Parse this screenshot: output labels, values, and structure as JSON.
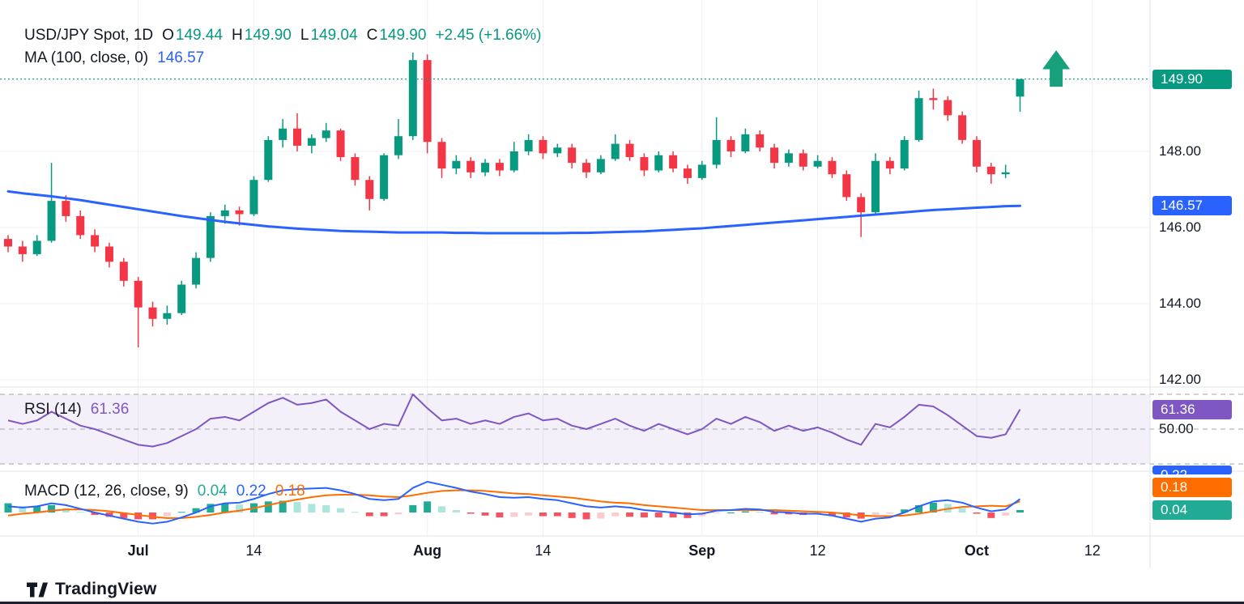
{
  "header": {
    "title": "USD/JPY Spot, 1D",
    "ohlc": {
      "o_label": "O",
      "o": "149.44",
      "h_label": "H",
      "h": "149.90",
      "l_label": "L",
      "l": "149.04",
      "c_label": "C",
      "c": "149.90",
      "change": "+2.45 (+1.66%)"
    },
    "ma": {
      "label": "MA (100, close, 0)",
      "value": "146.57"
    }
  },
  "rsi_legend": {
    "label": "RSI (14)",
    "value": "61.36"
  },
  "macd_legend": {
    "label": "MACD (12, 26, close, 9)",
    "hist": "0.04",
    "macd": "0.22",
    "signal": "0.18"
  },
  "axis": {
    "items": [
      {
        "text": "149.90",
        "pane": "main",
        "at": 149.9,
        "type": "badge",
        "bg": "#089981"
      },
      {
        "text": "148.00",
        "pane": "main",
        "at": 148.0,
        "type": "label"
      },
      {
        "text": "146.57",
        "pane": "main",
        "at": 146.57,
        "type": "badge",
        "bg": "#2962FF"
      },
      {
        "text": "146.00",
        "pane": "main",
        "at": 146.0,
        "type": "label"
      },
      {
        "text": "144.00",
        "pane": "main",
        "at": 144.0,
        "type": "label"
      },
      {
        "text": "142.00",
        "pane": "main",
        "at": 142.0,
        "type": "label"
      },
      {
        "text": "61.36",
        "pane": "rsi",
        "at": 61.36,
        "type": "badge",
        "bg": "#7E57C2"
      },
      {
        "text": "50.00",
        "pane": "rsi",
        "at": 50.0,
        "type": "label"
      },
      {
        "text": "0.22",
        "pane": "macd",
        "at": 0.22,
        "type": "badge",
        "bg": "#2962FF"
      },
      {
        "text": "0.18",
        "pane": "macd",
        "at": 0.18,
        "type": "badge",
        "bg": "#FF6D00"
      },
      {
        "text": "0.04",
        "pane": "macd",
        "at": 0.04,
        "type": "badge",
        "bg": "#22AB94"
      }
    ]
  },
  "footer": {
    "brand": "TradingView"
  },
  "colors": {
    "up": "#089981",
    "down": "#F23645",
    "ma": "#2962FF",
    "rsi": "#7E57C2",
    "band": "rgba(126,87,194,0.09)",
    "macd": "#2962FF",
    "signal": "#FF6D00",
    "hist_up": "#22AB94",
    "hist_up_fade": "#ACE5DC",
    "hist_down": "#F7525F",
    "hist_down_fade": "#FCCBCD",
    "grid": "#EDF0F6",
    "divider": "#E0E3EB",
    "dashed": "#A2A6AF"
  },
  "chart_data": {
    "type": "candlestick",
    "symbol": "USD/JPY Spot",
    "timeframe": "1D",
    "last": {
      "open": 149.44,
      "high": 149.9,
      "low": 149.04,
      "close": 149.9,
      "change": 2.45,
      "change_pct": 1.66
    },
    "close_price": 149.9,
    "price_gridlines": [
      148,
      146,
      144,
      142
    ],
    "price_axis_visible_range": [
      141.8,
      152.0
    ],
    "x_ticks": [
      {
        "index": 9,
        "label": "Jul",
        "major": true
      },
      {
        "index": 17,
        "label": "14",
        "major": false
      },
      {
        "index": 29,
        "label": "Aug",
        "major": true
      },
      {
        "index": 37,
        "label": "14",
        "major": false
      },
      {
        "index": 48,
        "label": "Sep",
        "major": true
      },
      {
        "index": 56,
        "label": "12",
        "major": false
      },
      {
        "index": 67,
        "label": "Oct",
        "major": true
      },
      {
        "index": 75,
        "label": "12",
        "major": false
      }
    ],
    "candles": [
      [
        145.7,
        145.8,
        145.35,
        145.5
      ],
      [
        145.5,
        145.65,
        145.1,
        145.3
      ],
      [
        145.3,
        145.8,
        145.25,
        145.65
      ],
      [
        145.65,
        147.7,
        145.6,
        146.7
      ],
      [
        146.7,
        146.85,
        146.15,
        146.3
      ],
      [
        146.3,
        146.45,
        145.7,
        145.8
      ],
      [
        145.8,
        145.95,
        145.35,
        145.5
      ],
      [
        145.5,
        145.6,
        144.95,
        145.1
      ],
      [
        145.1,
        145.2,
        144.45,
        144.6
      ],
      [
        144.6,
        144.7,
        142.85,
        143.9
      ],
      [
        143.9,
        144.05,
        143.4,
        143.6
      ],
      [
        143.6,
        143.95,
        143.45,
        143.75
      ],
      [
        143.75,
        144.6,
        143.7,
        144.5
      ],
      [
        144.5,
        145.35,
        144.4,
        145.2
      ],
      [
        145.2,
        146.4,
        145.1,
        146.3
      ],
      [
        146.3,
        146.6,
        146.1,
        146.45
      ],
      [
        146.45,
        146.55,
        146.05,
        146.35
      ],
      [
        146.35,
        147.35,
        146.3,
        147.25
      ],
      [
        147.25,
        148.4,
        147.2,
        148.3
      ],
      [
        148.3,
        148.85,
        148.1,
        148.6
      ],
      [
        148.6,
        149.0,
        148.0,
        148.15
      ],
      [
        148.15,
        148.45,
        147.95,
        148.35
      ],
      [
        148.35,
        148.75,
        148.25,
        148.55
      ],
      [
        148.55,
        148.6,
        147.75,
        147.85
      ],
      [
        147.85,
        147.95,
        147.1,
        147.25
      ],
      [
        147.25,
        147.35,
        146.45,
        146.75
      ],
      [
        146.75,
        147.95,
        146.7,
        147.9
      ],
      [
        147.9,
        148.85,
        147.8,
        148.4
      ],
      [
        148.4,
        150.6,
        148.3,
        150.4
      ],
      [
        150.4,
        150.55,
        147.95,
        148.25
      ],
      [
        148.25,
        148.35,
        147.3,
        147.55
      ],
      [
        147.55,
        147.9,
        147.4,
        147.75
      ],
      [
        147.75,
        147.85,
        147.3,
        147.45
      ],
      [
        147.45,
        147.8,
        147.35,
        147.7
      ],
      [
        147.7,
        147.8,
        147.35,
        147.5
      ],
      [
        147.5,
        148.25,
        147.45,
        148.0
      ],
      [
        148.0,
        148.45,
        147.9,
        148.3
      ],
      [
        148.3,
        148.4,
        147.8,
        147.95
      ],
      [
        147.95,
        148.2,
        147.85,
        148.1
      ],
      [
        148.1,
        148.2,
        147.55,
        147.7
      ],
      [
        147.7,
        147.8,
        147.3,
        147.45
      ],
      [
        147.45,
        147.9,
        147.4,
        147.8
      ],
      [
        147.8,
        148.45,
        147.75,
        148.2
      ],
      [
        148.2,
        148.3,
        147.75,
        147.85
      ],
      [
        147.85,
        147.95,
        147.35,
        147.5
      ],
      [
        147.5,
        148.0,
        147.45,
        147.9
      ],
      [
        147.9,
        148.0,
        147.45,
        147.55
      ],
      [
        147.55,
        147.65,
        147.15,
        147.3
      ],
      [
        147.3,
        147.75,
        147.25,
        147.65
      ],
      [
        147.65,
        148.9,
        147.55,
        148.3
      ],
      [
        148.3,
        148.4,
        147.85,
        148.0
      ],
      [
        148.0,
        148.6,
        147.95,
        148.45
      ],
      [
        148.45,
        148.55,
        148.0,
        148.1
      ],
      [
        148.1,
        148.2,
        147.55,
        147.7
      ],
      [
        147.7,
        148.05,
        147.6,
        147.95
      ],
      [
        147.95,
        148.05,
        147.5,
        147.6
      ],
      [
        147.6,
        147.9,
        147.55,
        147.75
      ],
      [
        147.75,
        147.85,
        147.3,
        147.4
      ],
      [
        147.4,
        147.5,
        146.7,
        146.8
      ],
      [
        146.8,
        146.9,
        145.75,
        146.4
      ],
      [
        146.4,
        147.95,
        146.35,
        147.75
      ],
      [
        147.75,
        147.85,
        147.4,
        147.55
      ],
      [
        147.55,
        148.4,
        147.5,
        148.3
      ],
      [
        148.3,
        149.6,
        148.25,
        149.4
      ],
      [
        149.4,
        149.65,
        149.1,
        149.35
      ],
      [
        149.35,
        149.45,
        148.8,
        148.95
      ],
      [
        148.95,
        149.05,
        148.2,
        148.3
      ],
      [
        148.3,
        148.4,
        147.45,
        147.6
      ],
      [
        147.6,
        147.7,
        147.15,
        147.4
      ],
      [
        147.4,
        147.65,
        147.3,
        147.45
      ],
      [
        149.44,
        149.9,
        149.04,
        149.9
      ]
    ],
    "ma100": [
      146.95,
      146.9,
      146.86,
      146.82,
      146.77,
      146.72,
      146.66,
      146.6,
      146.54,
      146.48,
      146.42,
      146.36,
      146.3,
      146.25,
      146.2,
      146.15,
      146.11,
      146.07,
      146.03,
      146.0,
      145.97,
      145.95,
      145.93,
      145.91,
      145.9,
      145.89,
      145.88,
      145.87,
      145.87,
      145.87,
      145.87,
      145.86,
      145.86,
      145.85,
      145.85,
      145.85,
      145.85,
      145.85,
      145.85,
      145.86,
      145.86,
      145.87,
      145.88,
      145.89,
      145.9,
      145.92,
      145.94,
      145.96,
      145.98,
      146.01,
      146.04,
      146.07,
      146.1,
      146.13,
      146.16,
      146.19,
      146.22,
      146.25,
      146.28,
      146.31,
      146.34,
      146.37,
      146.4,
      146.43,
      146.46,
      146.48,
      146.5,
      146.52,
      146.54,
      146.56,
      146.57
    ],
    "rsi14": [
      55,
      53,
      55,
      60,
      56,
      52,
      50,
      47,
      44,
      41,
      40,
      42,
      46,
      50,
      56,
      57,
      55,
      60,
      65,
      68,
      64,
      65,
      67,
      60,
      55,
      50,
      53,
      52,
      70,
      62,
      55,
      56,
      53,
      55,
      53,
      57,
      59,
      55,
      56,
      52,
      50,
      53,
      56,
      52,
      49,
      53,
      50,
      47,
      50,
      56,
      53,
      57,
      54,
      49,
      52,
      49,
      51,
      48,
      44,
      41,
      53,
      51,
      57,
      64,
      63,
      58,
      52,
      46,
      45,
      47,
      61.36
    ],
    "rsi_levels": [
      70,
      50,
      30
    ],
    "macd": {
      "macd": [
        0.1,
        0.08,
        0.1,
        0.15,
        0.12,
        0.06,
        0.0,
        -0.05,
        -0.1,
        -0.15,
        -0.18,
        -0.15,
        -0.08,
        0.0,
        0.1,
        0.15,
        0.16,
        0.22,
        0.3,
        0.36,
        0.38,
        0.39,
        0.4,
        0.36,
        0.3,
        0.22,
        0.2,
        0.22,
        0.4,
        0.5,
        0.45,
        0.4,
        0.34,
        0.3,
        0.25,
        0.24,
        0.25,
        0.22,
        0.2,
        0.15,
        0.1,
        0.08,
        0.1,
        0.08,
        0.04,
        0.02,
        0.0,
        -0.03,
        -0.02,
        0.03,
        0.04,
        0.06,
        0.05,
        0.01,
        0.0,
        -0.02,
        -0.02,
        -0.05,
        -0.1,
        -0.15,
        -0.1,
        -0.08,
        0.0,
        0.1,
        0.18,
        0.2,
        0.16,
        0.08,
        0.02,
        0.05,
        0.22
      ],
      "signal": [
        -0.05,
        -0.02,
        0.0,
        0.03,
        0.05,
        0.05,
        0.04,
        0.02,
        -0.01,
        -0.04,
        -0.07,
        -0.09,
        -0.09,
        -0.07,
        -0.04,
        0.0,
        0.03,
        0.07,
        0.12,
        0.17,
        0.21,
        0.25,
        0.28,
        0.29,
        0.29,
        0.28,
        0.26,
        0.25,
        0.28,
        0.32,
        0.35,
        0.36,
        0.36,
        0.35,
        0.33,
        0.31,
        0.3,
        0.28,
        0.26,
        0.24,
        0.21,
        0.18,
        0.16,
        0.15,
        0.12,
        0.1,
        0.08,
        0.06,
        0.04,
        0.04,
        0.04,
        0.04,
        0.04,
        0.04,
        0.03,
        0.02,
        0.01,
        0.0,
        -0.02,
        -0.05,
        -0.06,
        -0.06,
        -0.05,
        -0.02,
        0.02,
        0.06,
        0.09,
        0.1,
        0.11,
        0.1,
        0.18
      ],
      "last_hist": 0.04,
      "last_macd": 0.22,
      "last_signal": 0.18
    },
    "annotation": {
      "type": "arrow-up",
      "x_index": 72.5,
      "tip_price": 150.66,
      "base_price": 149.7,
      "color": "#18A07C"
    }
  }
}
